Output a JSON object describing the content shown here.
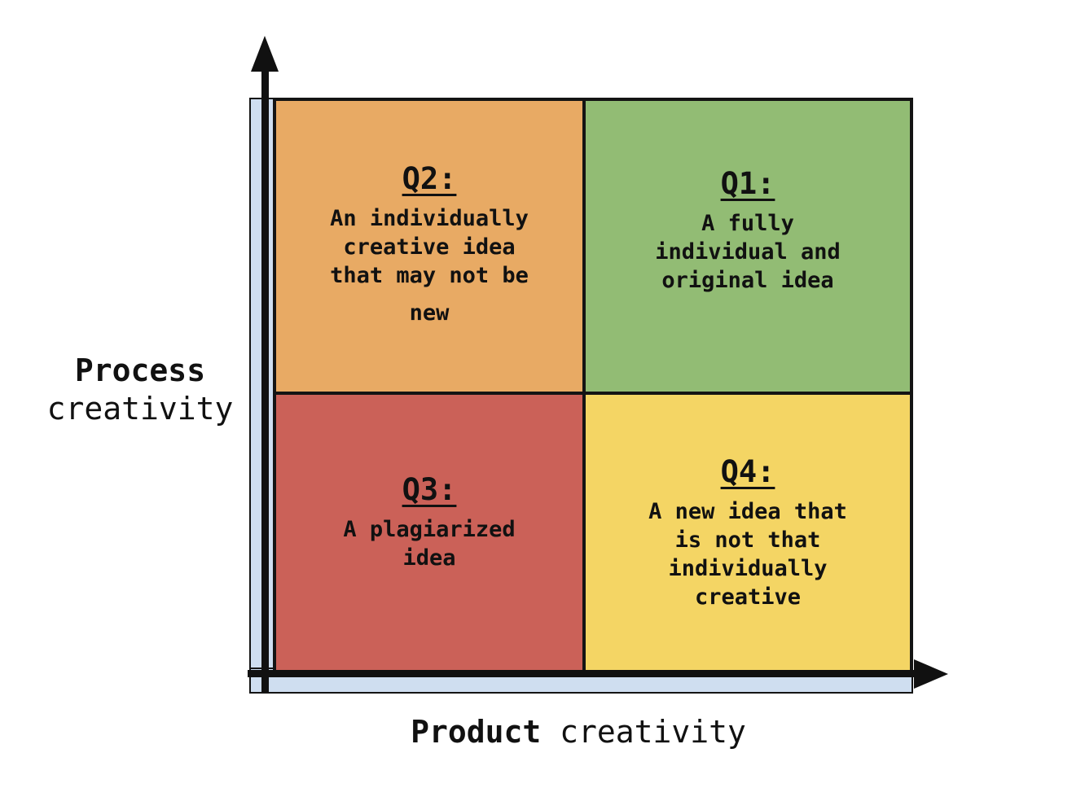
{
  "axes": {
    "y": {
      "word_bold": "Process",
      "word_rest": "creativity"
    },
    "x": {
      "word_bold": "Product",
      "word_rest": "creativity"
    }
  },
  "quadrants": {
    "q2": {
      "title": "Q2:",
      "lines": [
        "An individually",
        "creative idea",
        "that may not be",
        "new"
      ],
      "color": "#E8AA64"
    },
    "q1": {
      "title": "Q1:",
      "lines": [
        "A fully",
        "individual and",
        "original idea"
      ],
      "color": "#92BC74"
    },
    "q3": {
      "title": "Q3:",
      "lines": [
        "A plagiarized",
        "idea"
      ],
      "color": "#CB6158"
    },
    "q4": {
      "title": "Q4:",
      "lines": [
        "A new idea that",
        "is not that",
        "individually",
        "creative"
      ],
      "color": "#F4D564"
    }
  },
  "colors": {
    "axis_band": "#CFDEF0",
    "line": "#111111",
    "background": "#FFFFFF",
    "text": "#111111"
  }
}
